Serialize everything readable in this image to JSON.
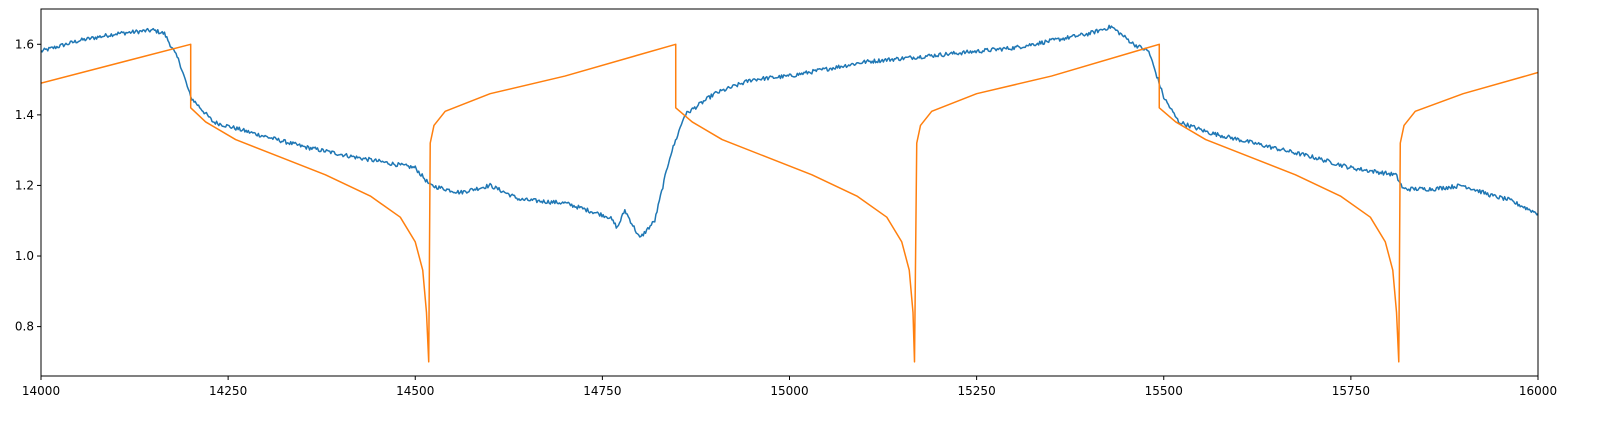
{
  "chart_data": {
    "type": "line",
    "title": "",
    "xlabel": "",
    "ylabel": "",
    "xlim": [
      14000,
      16000
    ],
    "ylim": [
      0.66,
      1.7
    ],
    "grid": false,
    "legend": "none",
    "x_ticks": [
      14000,
      14250,
      14500,
      14750,
      15000,
      15250,
      15500,
      15750,
      16000
    ],
    "x_tick_labels": [
      "14000",
      "14250",
      "14500",
      "14750",
      "15000",
      "15250",
      "15500",
      "15750",
      "16000"
    ],
    "y_ticks": [
      0.8,
      1.0,
      1.2,
      1.4,
      1.6
    ],
    "y_tick_labels": [
      "0.8",
      "1.0",
      "1.2",
      "1.4",
      "1.6"
    ],
    "series": [
      {
        "color": "#1f77b4",
        "noisy": true,
        "x": [
          14000,
          14050,
          14100,
          14150,
          14165,
          14185,
          14200,
          14230,
          14280,
          14350,
          14420,
          14500,
          14520,
          14560,
          14600,
          14640,
          14700,
          14760,
          14770,
          14780,
          14800,
          14820,
          14840,
          14860,
          14900,
          14950,
          15000,
          15100,
          15200,
          15300,
          15400,
          15430,
          15460,
          15480,
          15500,
          15520,
          15560,
          15600,
          15700,
          15750,
          15810,
          15820,
          15860,
          15900,
          15940,
          15960,
          16000
        ],
        "y": [
          1.58,
          1.61,
          1.63,
          1.64,
          1.63,
          1.55,
          1.45,
          1.38,
          1.35,
          1.31,
          1.28,
          1.25,
          1.2,
          1.18,
          1.2,
          1.16,
          1.15,
          1.11,
          1.08,
          1.13,
          1.05,
          1.1,
          1.28,
          1.4,
          1.46,
          1.5,
          1.51,
          1.55,
          1.57,
          1.59,
          1.63,
          1.65,
          1.6,
          1.58,
          1.45,
          1.38,
          1.35,
          1.33,
          1.28,
          1.25,
          1.23,
          1.19,
          1.19,
          1.2,
          1.17,
          1.16,
          1.12
        ]
      },
      {
        "color": "#ff7f0e",
        "noisy": false,
        "x": [
          14000,
          14200,
          14200,
          14220,
          14260,
          14320,
          14380,
          14440,
          14480,
          14500,
          14510,
          14515,
          14518,
          14520,
          14525,
          14540,
          14600,
          14700,
          14848,
          14848,
          14870,
          14910,
          14970,
          15030,
          15090,
          15130,
          15150,
          15160,
          15165,
          15167,
          15170,
          15175,
          15190,
          15250,
          15350,
          15494,
          15494,
          15516,
          15556,
          15616,
          15676,
          15736,
          15776,
          15796,
          15806,
          15811,
          15814,
          15816,
          15821,
          15836,
          15900,
          16000
        ],
        "y": [
          1.49,
          1.6,
          1.42,
          1.38,
          1.33,
          1.28,
          1.23,
          1.17,
          1.11,
          1.04,
          0.96,
          0.84,
          0.7,
          1.32,
          1.37,
          1.41,
          1.46,
          1.51,
          1.6,
          1.42,
          1.38,
          1.33,
          1.28,
          1.23,
          1.17,
          1.11,
          1.04,
          0.96,
          0.84,
          0.7,
          1.32,
          1.37,
          1.41,
          1.46,
          1.51,
          1.6,
          1.42,
          1.38,
          1.33,
          1.28,
          1.23,
          1.17,
          1.11,
          1.04,
          0.96,
          0.84,
          0.7,
          1.32,
          1.37,
          1.41,
          1.46,
          1.52
        ]
      }
    ]
  }
}
